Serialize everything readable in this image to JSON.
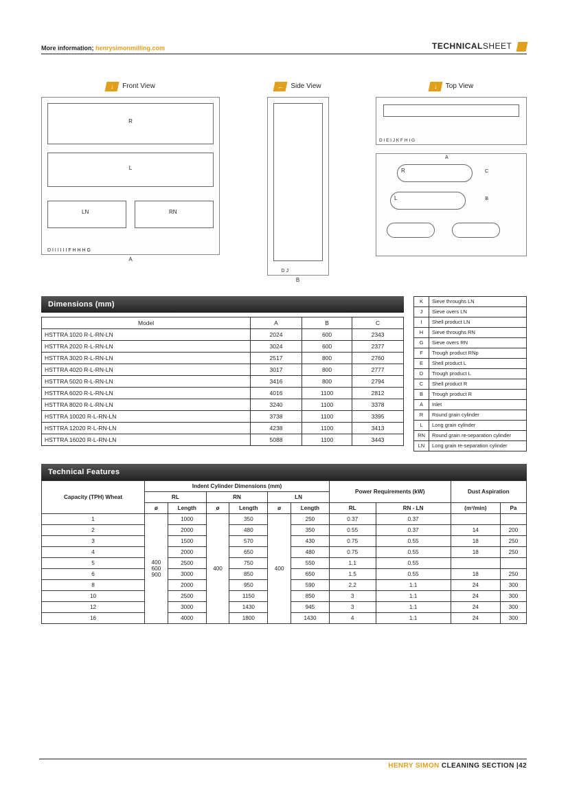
{
  "header": {
    "more_info_label": "More information;",
    "more_info_link": "henrysimonmilling.com",
    "tech_bold": "TECHNICAL",
    "tech_light": "SHEET"
  },
  "views": {
    "front": {
      "badge": "↓",
      "label": "Front View"
    },
    "side": {
      "badge": "←",
      "label": "Side View"
    },
    "top": {
      "badge": "↓",
      "label": "Top View"
    }
  },
  "dimensions": {
    "title": "Dimensions (mm)",
    "columns": [
      "Model",
      "A",
      "B",
      "C"
    ],
    "rows": [
      [
        "HSTTRA 1020 R-L-RN-LN",
        "2024",
        "600",
        "2343"
      ],
      [
        "HSTTRA 2020 R-L-RN-LN",
        "3024",
        "600",
        "2377"
      ],
      [
        "HSTTRA 3020 R-L-RN-LN",
        "2517",
        "800",
        "2760"
      ],
      [
        "HSTTRA 4020 R-L-RN-LN",
        "3017",
        "800",
        "2777"
      ],
      [
        "HSTTRA 5020 R-L-RN-LN",
        "3416",
        "800",
        "2794"
      ],
      [
        "HSTTRA 6020 R-L-RN-LN",
        "4016",
        "1100",
        "2812"
      ],
      [
        "HSTTRA 8020 R-L-RN-LN",
        "3240",
        "1100",
        "3378"
      ],
      [
        "HSTTRA 10020 R-L-RN-LN",
        "3738",
        "1100",
        "3395"
      ],
      [
        "HSTTRA 12020 R-L-RN-LN",
        "4238",
        "1100",
        "3413"
      ],
      [
        "HSTTRA 16020 R-L-RN-LN",
        "5088",
        "1100",
        "3443"
      ]
    ]
  },
  "legend": {
    "rows": [
      [
        "K",
        "Sieve throughs LN"
      ],
      [
        "J",
        "Sieve overs LN"
      ],
      [
        "I",
        "Shell product LN"
      ],
      [
        "H",
        "Sieve throughs RN"
      ],
      [
        "G",
        "Sieve overs RN"
      ],
      [
        "F",
        "Trough product RNp"
      ],
      [
        "E",
        "Shell product L"
      ],
      [
        "D",
        "Trough product L"
      ],
      [
        "C",
        "Shell product R"
      ],
      [
        "B",
        "Trough product R"
      ],
      [
        "A",
        "Inlet"
      ],
      [
        "R",
        "Round grain cylinder"
      ],
      [
        "L",
        "Long grain cylinder"
      ],
      [
        "RN",
        "Round grain re-separation cylinder"
      ],
      [
        "LN",
        "Long grain re-separation cylinder"
      ]
    ]
  },
  "technical": {
    "title": "Technical Features",
    "head1": {
      "capacity": "Capacity (TPH) Wheat",
      "indent": "Indent Cylinder Dimensions (mm)",
      "power": "Power Requirements (kW)",
      "dust": "Dust Aspiration"
    },
    "head2": {
      "rl": "RL",
      "rn": "RN",
      "ln": "LN"
    },
    "head3": {
      "dia": "ø",
      "len": "Length",
      "rl": "RL",
      "rnln": "RN - LN",
      "m3": "(m³/min)",
      "pa": "Pa"
    },
    "rl_dia": "400 600 900",
    "rn_dia": "400",
    "ln_dia": "400",
    "rows": [
      [
        "1",
        "1000",
        "350",
        "250",
        "0.37",
        "0.37",
        "",
        ""
      ],
      [
        "2",
        "2000",
        "480",
        "350",
        "0.55",
        "0.37",
        "14",
        "200"
      ],
      [
        "3",
        "1500",
        "570",
        "430",
        "0.75",
        "0.55",
        "18",
        "250"
      ],
      [
        "4",
        "2000",
        "650",
        "480",
        "0.75",
        "0.55",
        "18",
        "250"
      ],
      [
        "5",
        "2500",
        "750",
        "550",
        "1.1",
        "0.55",
        "",
        ""
      ],
      [
        "6",
        "3000",
        "850",
        "650",
        "1.5",
        "0.55",
        "18",
        "250"
      ],
      [
        "8",
        "2000",
        "950",
        "590",
        "2.2",
        "1.1",
        "24",
        "300"
      ],
      [
        "10",
        "2500",
        "1150",
        "850",
        "3",
        "1.1",
        "24",
        "300"
      ],
      [
        "12",
        "3000",
        "1430",
        "945",
        "3",
        "1.1",
        "24",
        "300"
      ],
      [
        "16",
        "4000",
        "1800",
        "1430",
        "4",
        "1.1",
        "24",
        "300"
      ]
    ]
  },
  "footer": {
    "brand": "HENRY SIMON",
    "rest": " CLEANING SECTION |42"
  },
  "colors": {
    "accent": "#e0a01c",
    "header_grad_top": "#555555",
    "header_grad_bot": "#222222",
    "border": "#333333",
    "text": "#222222"
  }
}
